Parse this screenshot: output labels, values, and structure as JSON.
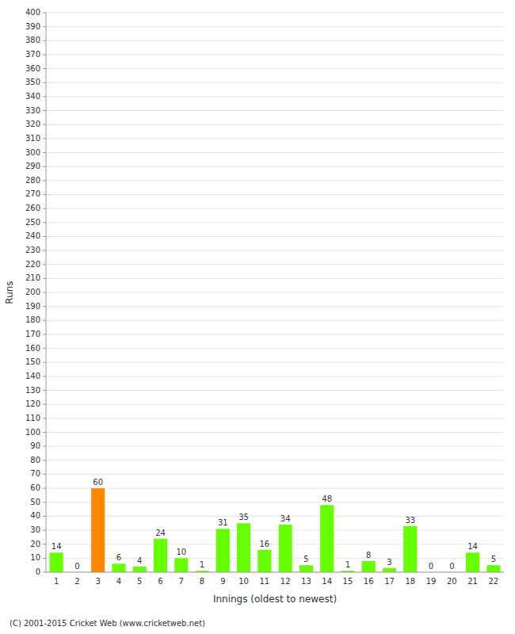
{
  "chart_data": {
    "type": "bar",
    "xlabel": "Innings (oldest to newest)",
    "ylabel": "Runs",
    "categories": [
      1,
      2,
      3,
      4,
      5,
      6,
      7,
      8,
      9,
      10,
      11,
      12,
      13,
      14,
      15,
      16,
      17,
      18,
      19,
      20,
      21,
      22
    ],
    "values": [
      14,
      0,
      60,
      6,
      4,
      24,
      10,
      1,
      31,
      35,
      16,
      34,
      5,
      48,
      1,
      8,
      3,
      33,
      0,
      0,
      14,
      5
    ],
    "colors": [
      "#66ff00",
      "#66ff00",
      "#ff8800",
      "#66ff00",
      "#66ff00",
      "#66ff00",
      "#66ff00",
      "#66ff00",
      "#66ff00",
      "#66ff00",
      "#66ff00",
      "#66ff00",
      "#66ff00",
      "#66ff00",
      "#66ff00",
      "#66ff00",
      "#66ff00",
      "#66ff00",
      "#66ff00",
      "#66ff00",
      "#66ff00",
      "#66ff00"
    ],
    "ylim": [
      0,
      400
    ],
    "yticks": [
      0,
      10,
      20,
      30,
      40,
      50,
      60,
      70,
      80,
      90,
      100,
      110,
      120,
      130,
      140,
      150,
      160,
      170,
      180,
      190,
      200,
      210,
      220,
      230,
      240,
      250,
      260,
      270,
      280,
      290,
      300,
      310,
      320,
      330,
      340,
      350,
      360,
      370,
      380,
      390,
      400
    ],
    "grid": true,
    "data_labels": true,
    "annotations": [
      "(C) 2001-2015 Cricket Web (www.cricketweb.net)"
    ]
  }
}
